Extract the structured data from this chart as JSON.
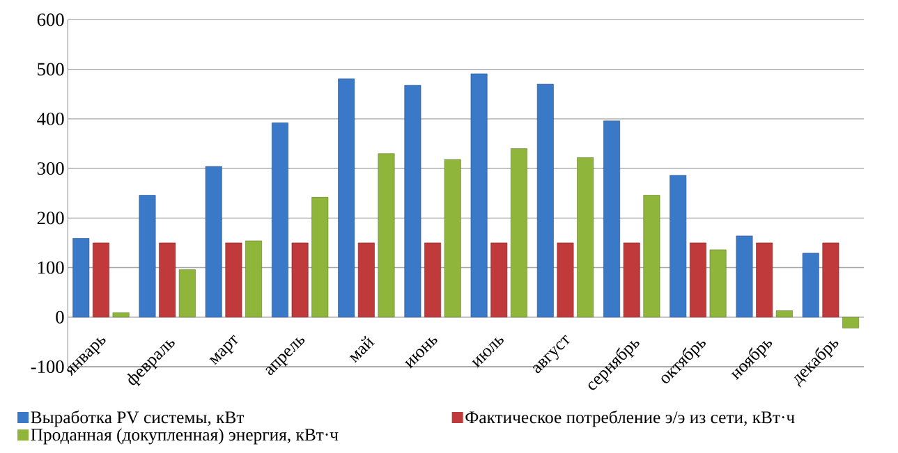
{
  "chart_data": {
    "type": "bar",
    "categories": [
      "январь",
      "февраль",
      "март",
      "апрель",
      "май",
      "июнь",
      "июль",
      "август",
      "сернябрь",
      "октябрь",
      "ноябрь",
      "декабрь"
    ],
    "series": [
      {
        "name": "Выработка PV системы, кВт",
        "color": "#3a78c8",
        "values": [
          159,
          246,
          304,
          392,
          481,
          468,
          491,
          470,
          396,
          286,
          164,
          129
        ]
      },
      {
        "name": "Фактическое потребление э/э из сети, кВт·ч",
        "color": "#c0393b",
        "values": [
          150,
          150,
          150,
          150,
          150,
          150,
          150,
          150,
          150,
          150,
          150,
          150
        ]
      },
      {
        "name": "Проданная (докупленная) энергия, кВт·ч",
        "color": "#8fb63a",
        "values": [
          9,
          96,
          154,
          242,
          330,
          318,
          340,
          322,
          246,
          136,
          13,
          -22
        ]
      }
    ],
    "ylim": [
      -100,
      600
    ],
    "yticks": [
      -100,
      0,
      100,
      200,
      300,
      400,
      500,
      600
    ],
    "grid": "y",
    "legend": "bottom"
  }
}
